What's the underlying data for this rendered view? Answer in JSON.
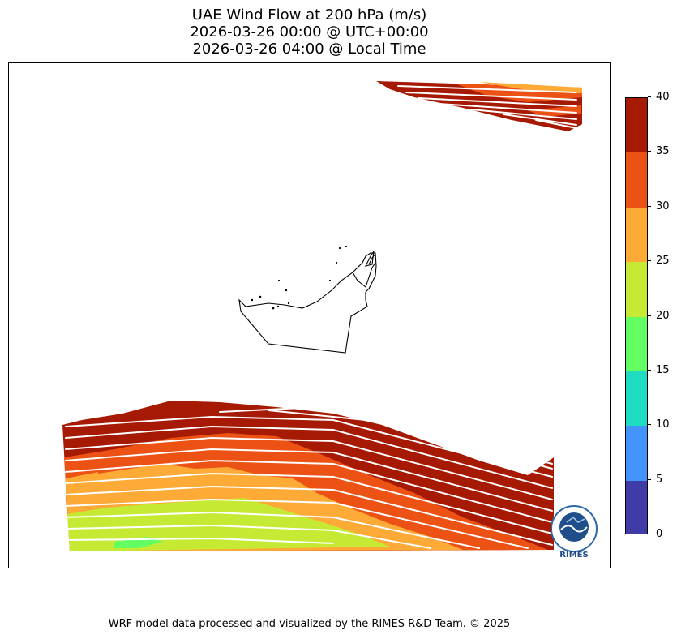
{
  "title": {
    "line1": "UAE Wind Flow at 200 hPa (m/s)",
    "line2": "2026-03-26 00:00 @ UTC+00:00",
    "line3": "2026-03-26 04:00 @ Local Time"
  },
  "colorbar": {
    "ticks": [
      "0",
      "5",
      "10",
      "15",
      "20",
      "25",
      "30",
      "35",
      "40"
    ],
    "colors": [
      "#3f3ca8",
      "#4393fd",
      "#1edcc1",
      "#62fe62",
      "#c6ea34",
      "#fdaa36",
      "#ec5214",
      "#a61903"
    ],
    "range": [
      0,
      40
    ]
  },
  "map": {
    "north_band_colors": [
      "#a61903",
      "#ec5214",
      "#fdaa36"
    ],
    "south_band_colors": [
      "#a61903",
      "#ec5214",
      "#fdaa36",
      "#c6ea34",
      "#62fe62"
    ],
    "streamline_color": "#ffffff",
    "boundary_color": "#000000"
  },
  "logo": {
    "text": "RIMES",
    "ring_text": "Regional Integrated Multi-Hazard Early Warning System"
  },
  "footer": "WRF model data processed and visualized by the RIMES R&D Team. © 2025"
}
